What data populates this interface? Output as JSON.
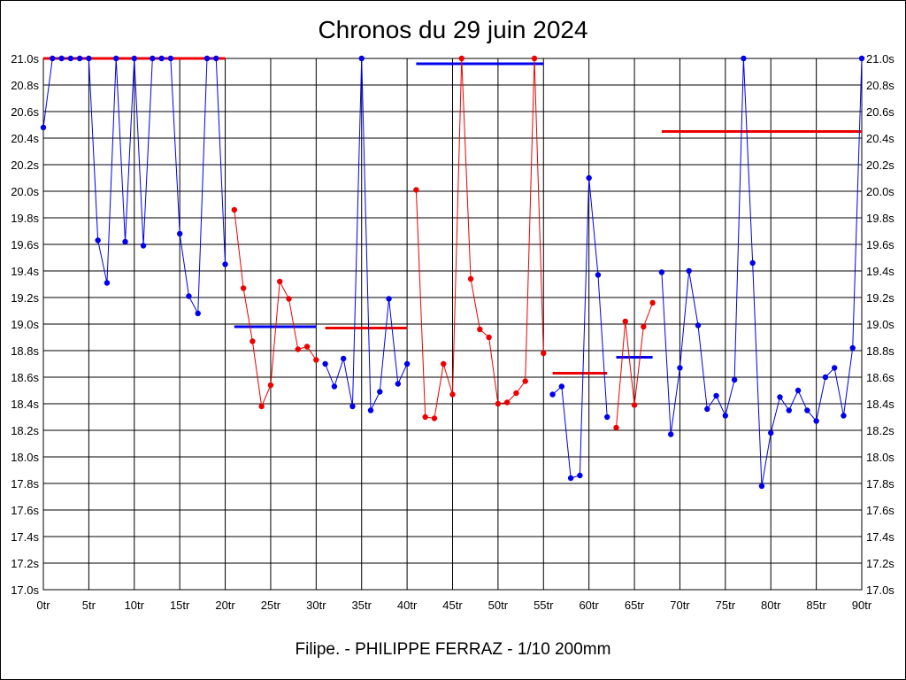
{
  "chart_data": {
    "type": "line",
    "title": "Chronos du 29 juin 2024",
    "footer": "Filipe. - PHILIPPE FERRAZ - 1/10 200mm",
    "xlim": [
      0,
      90
    ],
    "ylim": [
      17.0,
      21.0
    ],
    "x_ticks": [
      0,
      5,
      10,
      15,
      20,
      25,
      30,
      35,
      40,
      45,
      50,
      55,
      60,
      65,
      70,
      75,
      80,
      85,
      90
    ],
    "x_tick_labels": [
      "0tr",
      "5tr",
      "10tr",
      "15tr",
      "20tr",
      "25tr",
      "30tr",
      "35tr",
      "40tr",
      "45tr",
      "50tr",
      "55tr",
      "60tr",
      "65tr",
      "70tr",
      "75tr",
      "80tr",
      "85tr",
      "90tr"
    ],
    "y_ticks": [
      17.0,
      17.2,
      17.4,
      17.6,
      17.8,
      18.0,
      18.2,
      18.4,
      18.6,
      18.8,
      19.0,
      19.2,
      19.4,
      19.6,
      19.8,
      20.0,
      20.2,
      20.4,
      20.6,
      20.8,
      21.0
    ],
    "y_tick_labels": [
      "17.0s",
      "17.2s",
      "17.4s",
      "17.6s",
      "17.8s",
      "18.0s",
      "18.2s",
      "18.4s",
      "18.6s",
      "18.8s",
      "19.0s",
      "19.2s",
      "19.4s",
      "19.6s",
      "19.8s",
      "20.0s",
      "20.2s",
      "20.4s",
      "20.6s",
      "20.8s",
      "21.0s"
    ],
    "grid": true,
    "series": [
      {
        "name": "blue-1",
        "color": "#0000ee",
        "x": [
          0,
          1,
          2,
          3,
          4,
          5,
          6,
          7,
          8,
          9,
          10,
          11,
          12,
          13,
          14,
          15,
          16,
          17,
          18,
          19,
          20
        ],
        "y": [
          20.48,
          21.0,
          21.0,
          21.0,
          21.0,
          21.0,
          19.63,
          19.31,
          21.0,
          19.62,
          21.0,
          19.59,
          21.0,
          21.0,
          21.0,
          19.68,
          19.21,
          19.08,
          21.0,
          21.0,
          19.45
        ]
      },
      {
        "name": "red-1",
        "color": "#ee0000",
        "x": [
          21,
          22,
          23,
          24,
          25,
          26,
          27,
          28,
          29,
          30
        ],
        "y": [
          19.86,
          19.27,
          18.87,
          18.38,
          18.54,
          19.32,
          19.19,
          18.81,
          18.83,
          18.73
        ]
      },
      {
        "name": "blue-2",
        "color": "#0000ee",
        "x": [
          31,
          32,
          33,
          34,
          35,
          36,
          37,
          38,
          39,
          40
        ],
        "y": [
          18.7,
          18.53,
          18.74,
          18.38,
          21.0,
          18.35,
          18.49,
          19.19,
          18.55,
          18.7
        ]
      },
      {
        "name": "red-2",
        "color": "#ee0000",
        "x": [
          41,
          42,
          43,
          44,
          45,
          46,
          47,
          48,
          49,
          50,
          51,
          52,
          53,
          54,
          55
        ],
        "y": [
          20.01,
          18.3,
          18.29,
          18.7,
          18.47,
          21.0,
          19.34,
          18.96,
          18.9,
          18.4,
          18.41,
          18.48,
          18.57,
          21.0,
          18.78
        ]
      },
      {
        "name": "blue-3",
        "color": "#0000ee",
        "x": [
          56,
          57,
          58,
          59,
          60,
          61,
          62
        ],
        "y": [
          18.47,
          18.53,
          17.84,
          17.86,
          20.1,
          19.37,
          18.3
        ]
      },
      {
        "name": "red-3",
        "color": "#ee0000",
        "x": [
          63,
          64,
          65,
          66,
          67
        ],
        "y": [
          18.22,
          19.02,
          18.39,
          18.98,
          19.16
        ]
      },
      {
        "name": "blue-4",
        "color": "#0000ee",
        "x": [
          68,
          69,
          70,
          71,
          72,
          73,
          74,
          75,
          76,
          77,
          78,
          79,
          80,
          81,
          82,
          83,
          84,
          85,
          86,
          87,
          88,
          89,
          90
        ],
        "y": [
          19.39,
          18.17,
          18.67,
          19.4,
          18.99,
          18.36,
          18.46,
          18.31,
          18.58,
          21.0,
          19.46,
          17.78,
          18.18,
          18.45,
          18.35,
          18.5,
          18.35,
          18.27,
          18.6,
          18.67,
          18.31,
          18.82,
          21.0
        ]
      }
    ],
    "averages": [
      {
        "name": "avg-1",
        "color": "#ee0000",
        "x_start": 0,
        "x_end": 20,
        "value": 21.0
      },
      {
        "name": "avg-2",
        "color": "#0000ee",
        "x_start": 21,
        "x_end": 30,
        "value": 18.98
      },
      {
        "name": "avg-3",
        "color": "#ee0000",
        "x_start": 31,
        "x_end": 40,
        "value": 18.97
      },
      {
        "name": "avg-4",
        "color": "#0000ee",
        "x_start": 41,
        "x_end": 55,
        "value": 20.96
      },
      {
        "name": "avg-5",
        "color": "#ee0000",
        "x_start": 56,
        "x_end": 62,
        "value": 18.63
      },
      {
        "name": "avg-6",
        "color": "#0000ee",
        "x_start": 63,
        "x_end": 67,
        "value": 18.75
      },
      {
        "name": "avg-7",
        "color": "#ee0000",
        "x_start": 68,
        "x_end": 90,
        "value": 20.45
      }
    ]
  }
}
